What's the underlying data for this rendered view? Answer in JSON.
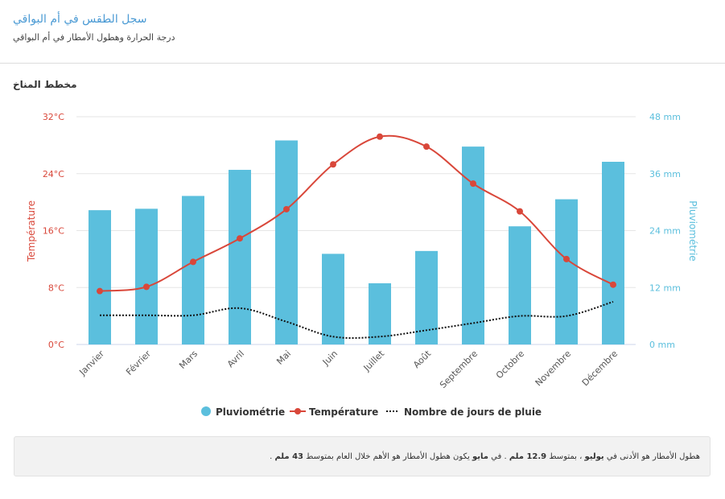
{
  "header": {
    "title": "سجل الطقس في أم البواقي",
    "subtitle": "درجة الحرارة وهطول الأمطار في أم البواقي"
  },
  "section_title": "مخطط المناخ",
  "chart_data": {
    "type": "bar+line",
    "categories": [
      "Janvier",
      "Février",
      "Mars",
      "Avril",
      "Mai",
      "Juin",
      "Juillet",
      "Août",
      "Septembre",
      "Octobre",
      "Novembre",
      "Décembre"
    ],
    "series": [
      {
        "name": "Pluviométrie",
        "type": "bar",
        "axis": "right",
        "unit": "mm",
        "values": [
          28.3,
          28.6,
          31.3,
          36.8,
          43,
          19.1,
          12.9,
          19.7,
          41.7,
          24.9,
          30.6,
          38.5
        ]
      },
      {
        "name": "Température",
        "type": "line",
        "axis": "left",
        "unit": "°C",
        "values": [
          7.5,
          8.1,
          11.6,
          14.9,
          19.0,
          25.3,
          29.2,
          27.8,
          22.6,
          18.7,
          12.0,
          8.4
        ]
      },
      {
        "name": "Nombre de jours de pluie",
        "type": "dotted-line",
        "axis": "left",
        "values": [
          4.1,
          4.1,
          4.1,
          5.1,
          3.2,
          1.1,
          1.1,
          2.0,
          3.0,
          4.0,
          4.0,
          6.0
        ]
      }
    ],
    "y_left": {
      "label": "Température",
      "ticks": [
        "0°C",
        "8°C",
        "16°C",
        "24°C",
        "32°C"
      ],
      "range": [
        0,
        32
      ]
    },
    "y_right": {
      "label": "Pluviométrie",
      "ticks": [
        "0 mm",
        "12 mm",
        "24 mm",
        "36 mm",
        "48 mm"
      ],
      "range": [
        0,
        48
      ]
    },
    "legend_position": "bottom",
    "colors": {
      "bar": "#5bbfdd",
      "temp": "#d9473a",
      "days": "#111111"
    }
  },
  "note": {
    "p1": "هطول الأمطار هو الأدنى في ",
    "m1": "يوليو",
    "p2": " ، بمتوسط ",
    "v1": "12.9 ملم",
    "p3": " . في ",
    "m2": "مايو",
    "p4": " يكون هطول الأمطار هو الأهم خلال العام بمتوسط ",
    "v2": "43 ملم",
    "p5": " ."
  }
}
